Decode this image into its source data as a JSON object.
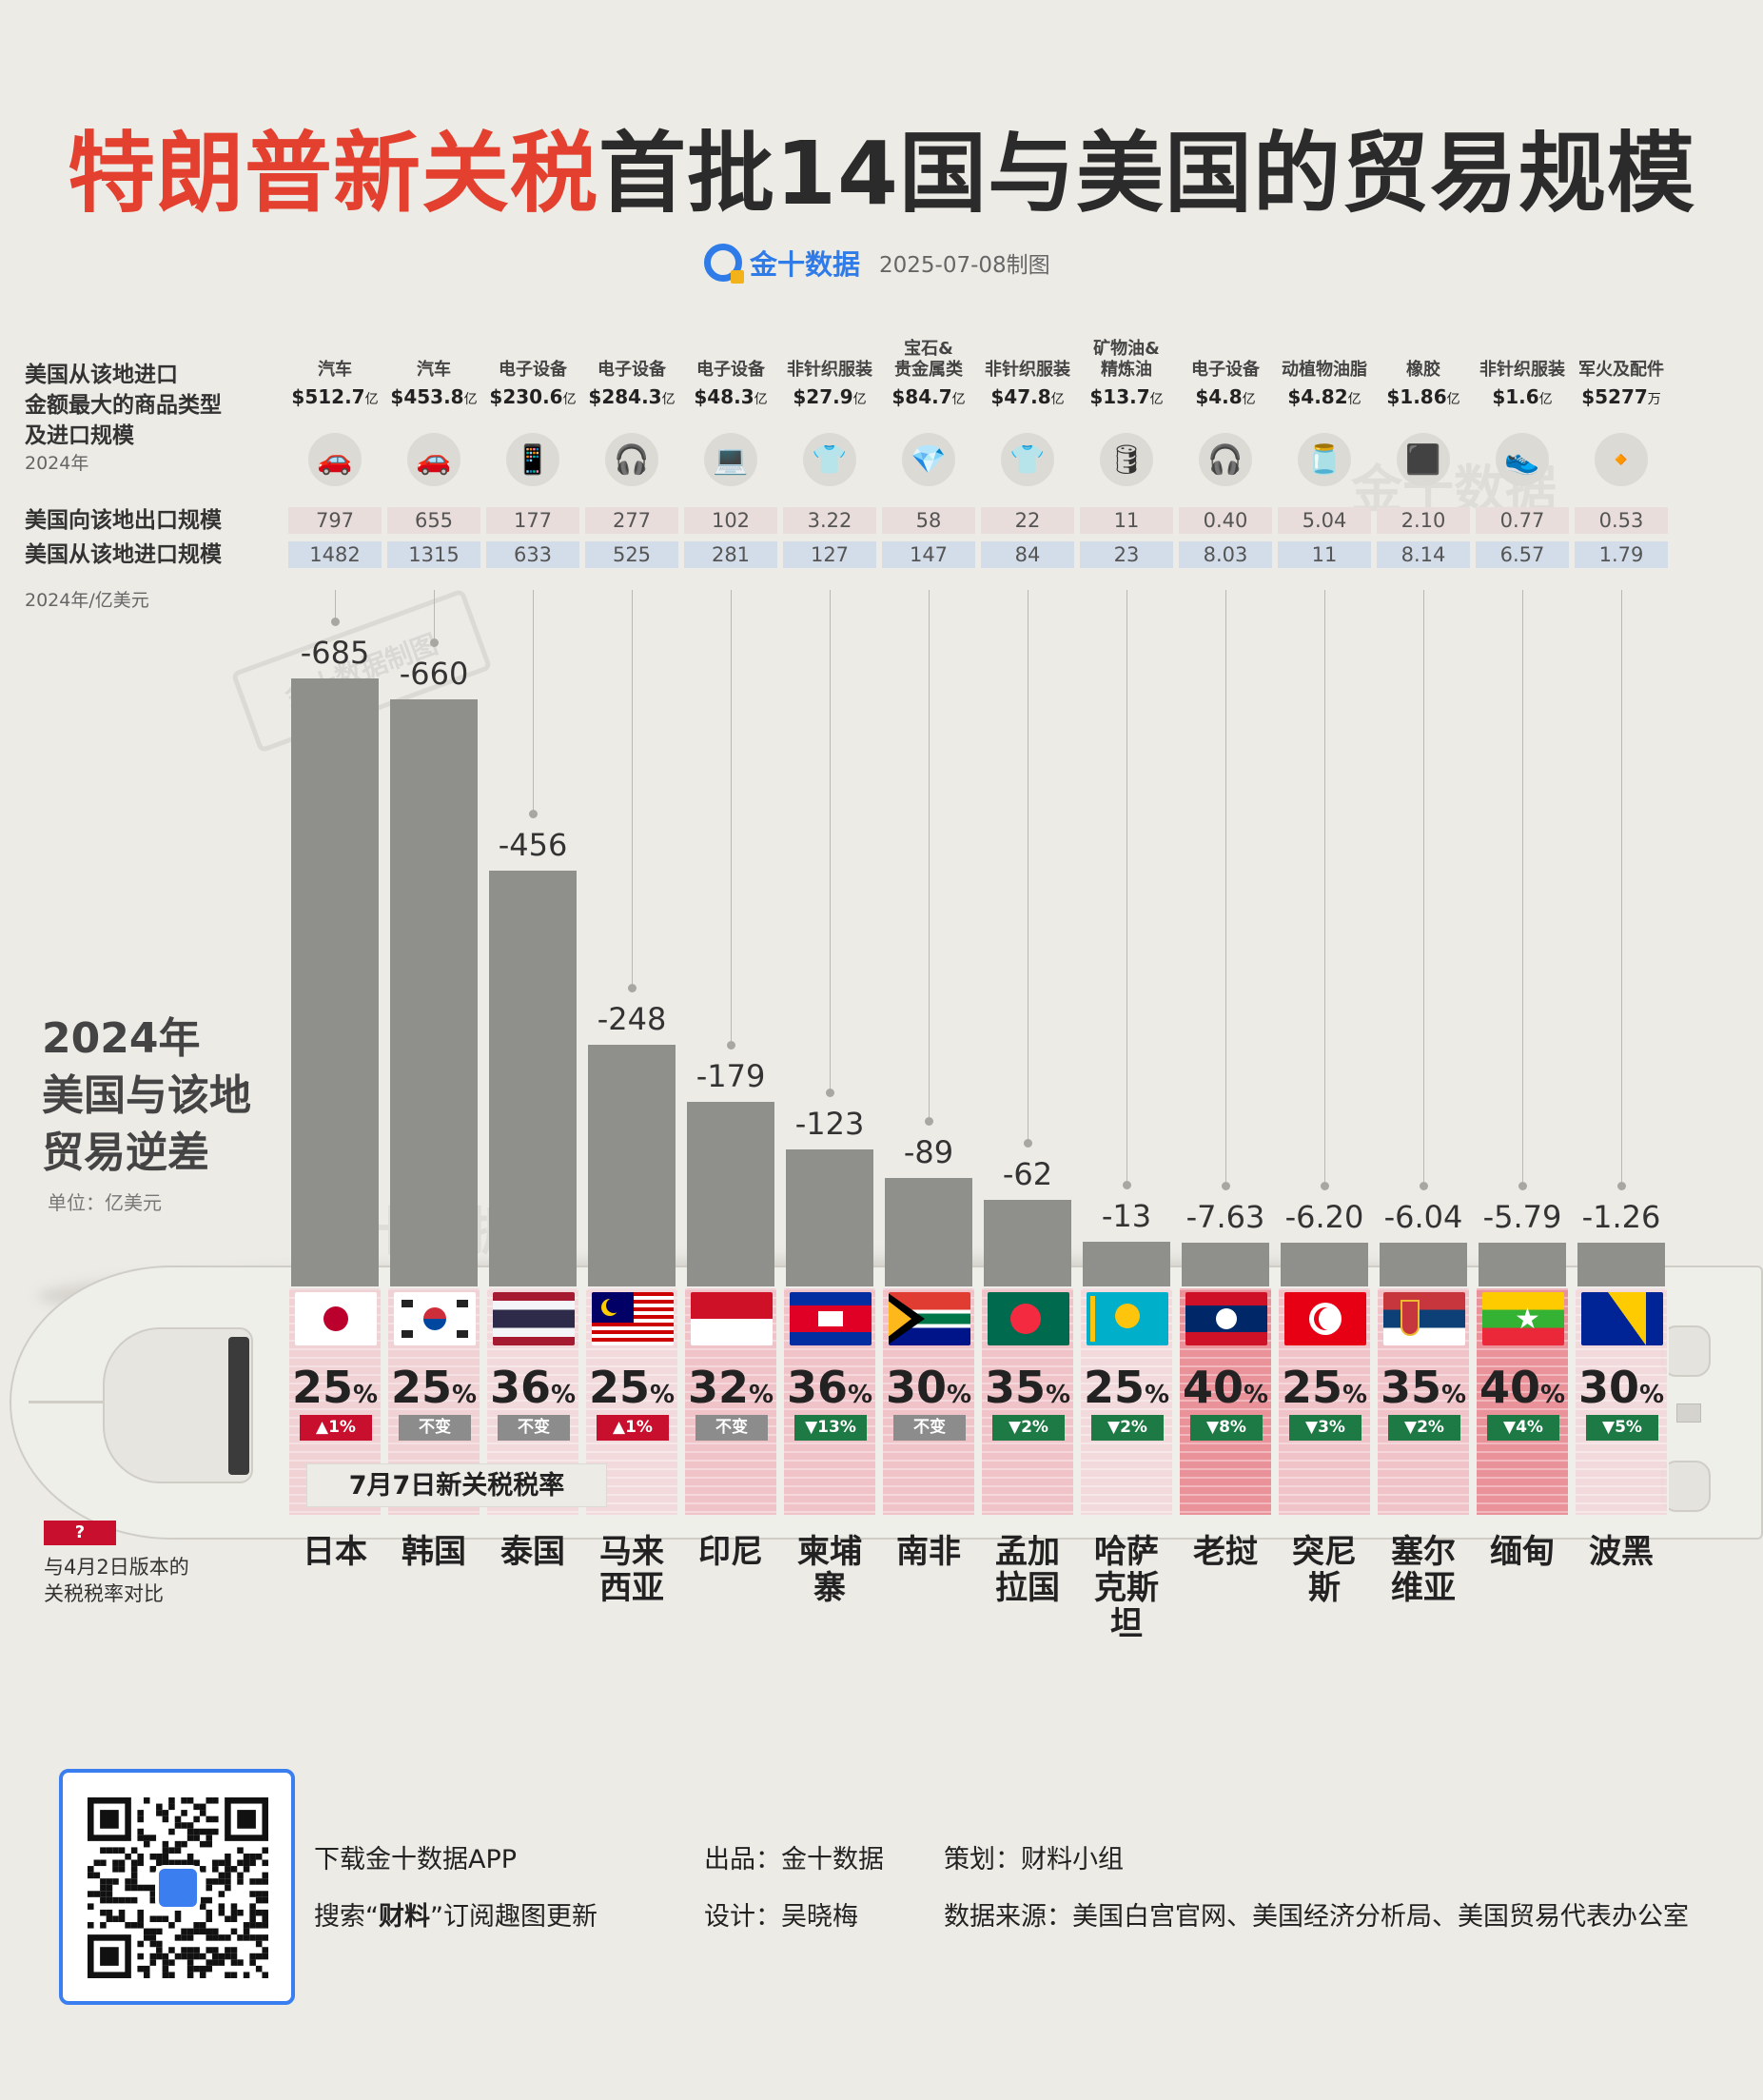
{
  "title": {
    "part_red": "特朗普新关税",
    "part_dark": "首批14国与美国的贸易规模"
  },
  "brand": {
    "name": "金十数据",
    "date": "2025-07-08制图"
  },
  "labels": {
    "import_category_l1": "美国从该地进口",
    "import_category_l2": "金额最大的商品类型",
    "import_category_l3": "及进口规模",
    "import_category_year": "2024年",
    "export_row": "美国向该地出口规模",
    "import_row": "美国从该地进口规模",
    "trade_year_unit": "2024年/亿美元",
    "deficit_l1": "2024年",
    "deficit_l2": "美国与该地",
    "deficit_l3": "贸易逆差",
    "deficit_unit": "单位：亿美元",
    "new_rate_tag": "7月7日新关税税率",
    "legend_box": "?",
    "legend_l1": "与4月2日版本的",
    "legend_l2": "关税税率对比",
    "watermark_stamp": "金十数据制图",
    "watermark_brand": "金十数据"
  },
  "chart_data": {
    "type": "bar",
    "ylabel": "2024年美国与该地贸易逆差",
    "unit": "亿美元",
    "categories": [
      "日本",
      "韩国",
      "泰国",
      "马来西亚",
      "印尼",
      "柬埔寨",
      "南非",
      "孟加拉国",
      "哈萨克斯坦",
      "老挝",
      "突尼斯",
      "塞尔维亚",
      "缅甸",
      "波黑"
    ],
    "deficit": [
      -685,
      -660,
      -456,
      -248,
      -179,
      -123,
      -89,
      -62,
      -13,
      -7.63,
      -6.2,
      -6.04,
      -5.79,
      -1.26
    ],
    "deficit_labels": [
      "-685",
      "-660",
      "-456",
      "-248",
      "-179",
      "-123",
      "-89",
      "-62",
      "-13",
      "-7.63",
      "-6.20",
      "-6.04",
      "-5.79",
      "-1.26"
    ],
    "us_exports": [
      "797",
      "655",
      "177",
      "277",
      "102",
      "3.22",
      "58",
      "22",
      "11",
      "0.40",
      "5.04",
      "2.10",
      "0.77",
      "0.53"
    ],
    "us_imports": [
      "1482",
      "1315",
      "633",
      "525",
      "281",
      "127",
      "147",
      "84",
      "23",
      "8.03",
      "11",
      "8.14",
      "6.57",
      "1.79"
    ],
    "top_import_category": [
      "汽车",
      "汽车",
      "电子设备",
      "电子设备",
      "电子设备",
      "非针织服装",
      "宝石&贵金属类",
      "非针织服装",
      "矿物油&精炼油",
      "电子设备",
      "动植物油脂",
      "橡胶",
      "非针织服装",
      "军火及配件"
    ],
    "top_import_amount": [
      "$512.7",
      "$453.8",
      "$230.6",
      "$284.3",
      "$48.3",
      "$27.9",
      "$84.7",
      "$47.8",
      "$13.7",
      "$4.8",
      "$4.82",
      "$1.86",
      "$1.6",
      "$5277"
    ],
    "top_import_unit": [
      "亿",
      "亿",
      "亿",
      "亿",
      "亿",
      "亿",
      "亿",
      "亿",
      "亿",
      "亿",
      "亿",
      "亿",
      "亿",
      "万"
    ],
    "tariff_rate": [
      25,
      25,
      36,
      25,
      32,
      36,
      30,
      35,
      25,
      40,
      25,
      35,
      40,
      30
    ],
    "tariff_change_text": [
      "▲1%",
      "不变",
      "不变",
      "▲1%",
      "不变",
      "▼13%",
      "不变",
      "▼2%",
      "▼2%",
      "▼8%",
      "▼3%",
      "▼2%",
      "▼4%",
      "▼5%"
    ],
    "tariff_change_dir": [
      "up",
      "same",
      "same",
      "up",
      "same",
      "down",
      "same",
      "down",
      "down",
      "down",
      "down",
      "down",
      "down",
      "down"
    ]
  },
  "icons": [
    "car-icon",
    "car-icon",
    "phone-icon",
    "earbuds-icon",
    "laptop-icon",
    "tshirt-icon",
    "gem-icon",
    "tshirt-icon",
    "oil-barrel-icon",
    "earbuds-icon",
    "oil-bottle-icon",
    "rubber-icon",
    "sneaker-icon",
    "bullet-icon"
  ],
  "colors": {
    "accent_red": "#e3402f",
    "bar_gray": "#8f8f8b",
    "up": "#c8102e",
    "down": "#1e7a44",
    "same": "#8c8c8c",
    "brand_blue": "#2f7be8"
  },
  "footer": {
    "download": "下载金十数据APP",
    "search_pre": "搜索“",
    "search_bold": "财料",
    "search_post": "”订阅趣图更新",
    "producer": "出品：金十数据",
    "designer": "设计：吴晓梅",
    "planner": "策划：财料小组",
    "source": "数据来源：美国白宫官网、美国经济分析局、美国贸易代表办公室"
  }
}
